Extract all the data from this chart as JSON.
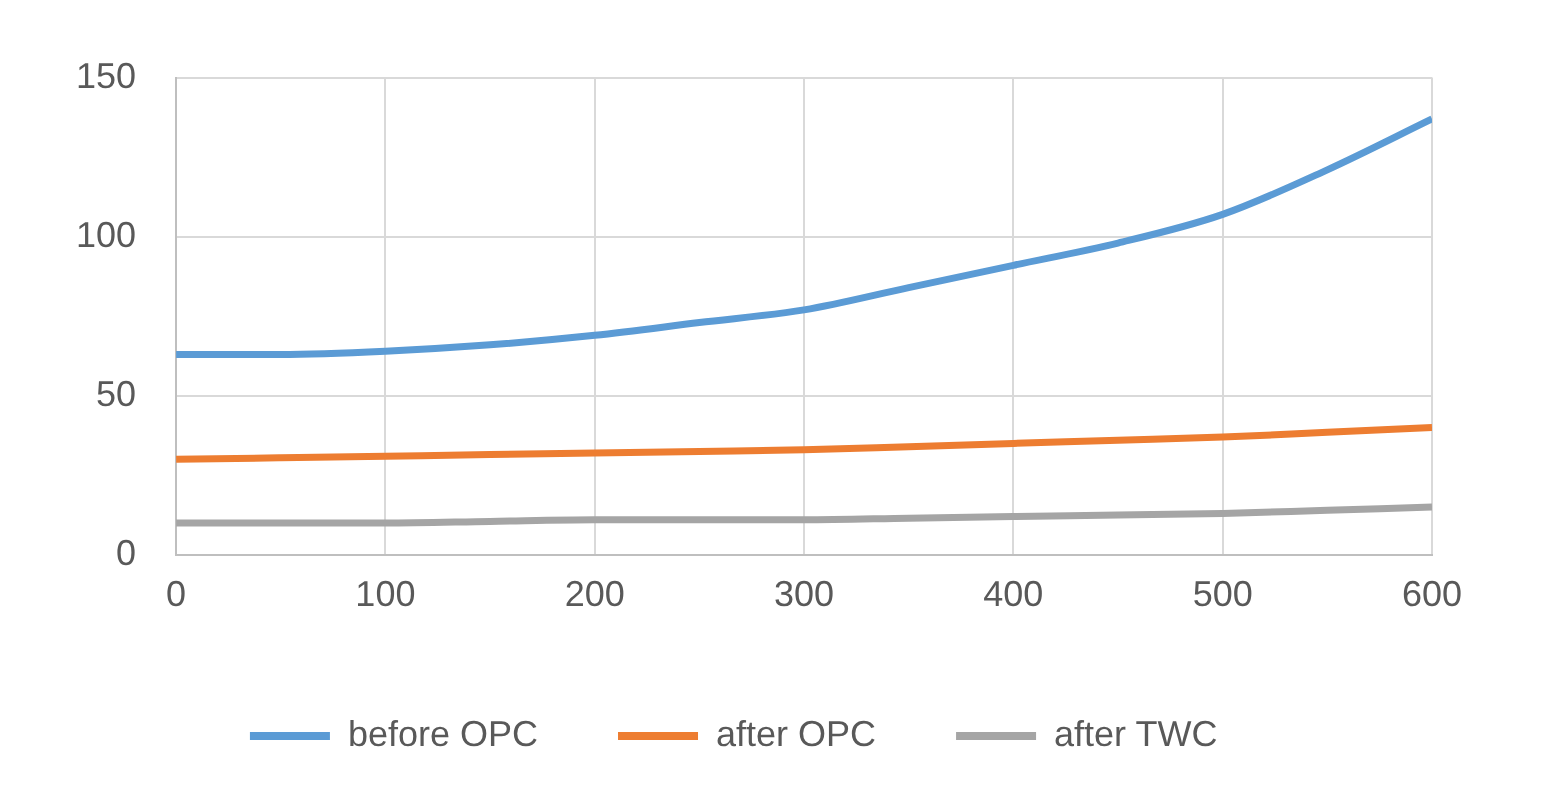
{
  "chart_data": {
    "type": "line",
    "x": [
      0,
      50,
      100,
      150,
      200,
      250,
      300,
      350,
      400,
      450,
      500,
      550,
      600
    ],
    "series": [
      {
        "name": "before OPC",
        "color": "#5b9bd5",
        "values": [
          63,
          63,
          64,
          66,
          69,
          73,
          77,
          84,
          91,
          98,
          107,
          121,
          137
        ]
      },
      {
        "name": "after OPC",
        "color": "#ed7d31",
        "values": [
          30,
          30.5,
          31,
          31.5,
          32,
          32.5,
          33,
          34,
          35,
          36,
          37,
          38.5,
          40
        ]
      },
      {
        "name": "after TWC",
        "color": "#a5a5a5",
        "values": [
          10,
          10,
          10,
          10.5,
          11,
          11,
          11,
          11.5,
          12,
          12.5,
          13,
          14,
          15
        ]
      }
    ],
    "xlim": [
      0,
      600
    ],
    "xticks": [
      0,
      100,
      200,
      300,
      400,
      500,
      600
    ],
    "ylim": [
      0,
      150
    ],
    "yticks": [
      0,
      50,
      100,
      150
    ],
    "grid": true,
    "legend": "bottom",
    "marker": "none",
    "line_style": "solid"
  }
}
